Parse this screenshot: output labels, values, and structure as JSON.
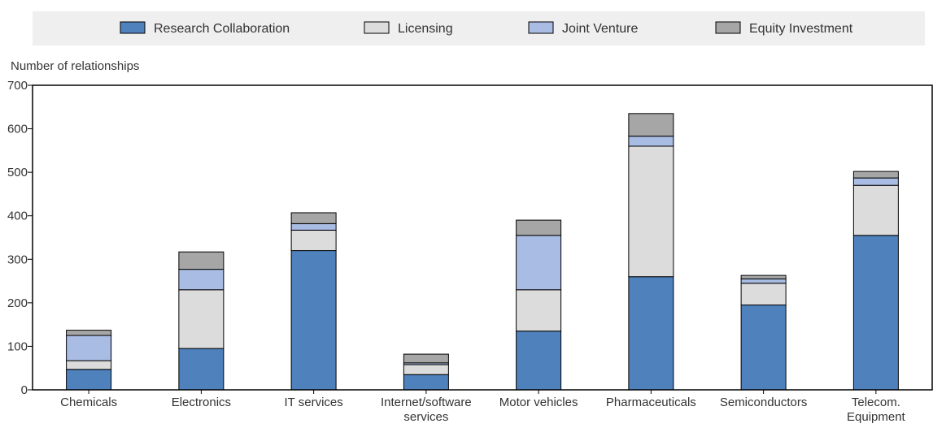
{
  "chart_data": {
    "type": "bar",
    "stacked": true,
    "ylabel": "Number of relationships",
    "ylim": [
      0,
      700
    ],
    "yticks": [
      0,
      100,
      200,
      300,
      400,
      500,
      600,
      700
    ],
    "grid": false,
    "legend_position": "top",
    "categories": [
      [
        "Chemicals"
      ],
      [
        "Electronics"
      ],
      [
        "IT services"
      ],
      [
        "Internet/software",
        "services"
      ],
      [
        "Motor vehicles"
      ],
      [
        "Pharmaceuticals"
      ],
      [
        "Semiconductors"
      ],
      [
        "Telecom.",
        "Equipment"
      ]
    ],
    "series": [
      {
        "name": "Research Collaboration",
        "color": "#4f81bd",
        "values": [
          47,
          95,
          320,
          35,
          135,
          260,
          195,
          355
        ]
      },
      {
        "name": "Licensing",
        "color": "#dcdcdc",
        "values": [
          20,
          135,
          47,
          23,
          95,
          300,
          50,
          115
        ]
      },
      {
        "name": "Joint Venture",
        "color": "#a9bce3",
        "values": [
          58,
          47,
          15,
          4,
          125,
          23,
          10,
          17
        ]
      },
      {
        "name": "Equity Investment",
        "color": "#a6a6a6",
        "values": [
          12,
          40,
          25,
          20,
          35,
          52,
          8,
          15
        ]
      }
    ]
  }
}
